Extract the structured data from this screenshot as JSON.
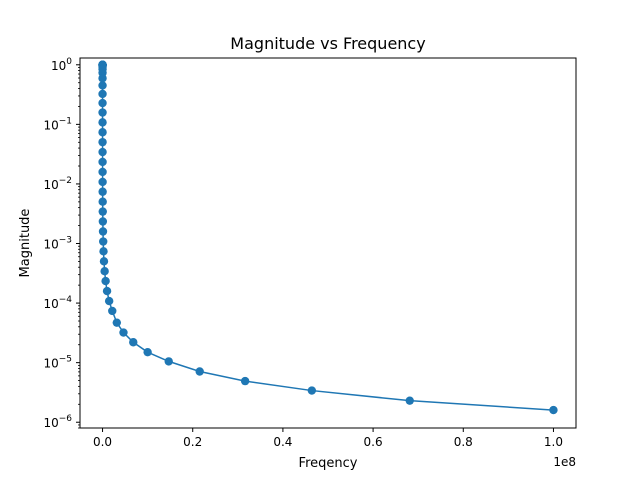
{
  "chart_data": {
    "type": "line",
    "title": "Magnitude vs Frequency",
    "xlabel": "Freqency",
    "ylabel": "Magnitude",
    "x_offset_label": "1e8",
    "yscale": "log",
    "grid": false,
    "legend": "none",
    "xlim": [
      -5000000,
      105000000
    ],
    "ylim": [
      8e-07,
      1.3
    ],
    "x_ticks": [
      {
        "value": 0,
        "label": "0.0"
      },
      {
        "value": 20000000,
        "label": "0.2"
      },
      {
        "value": 40000000,
        "label": "0.4"
      },
      {
        "value": 60000000,
        "label": "0.6"
      },
      {
        "value": 80000000,
        "label": "0.8"
      },
      {
        "value": 100000000,
        "label": "1.0"
      }
    ],
    "y_ticks": [
      {
        "value": 1e-06,
        "base": "10",
        "exp": "−6"
      },
      {
        "value": 1e-05,
        "base": "10",
        "exp": "−5"
      },
      {
        "value": 0.0001,
        "base": "10",
        "exp": "−4"
      },
      {
        "value": 0.001,
        "base": "10",
        "exp": "−3"
      },
      {
        "value": 0.01,
        "base": "10",
        "exp": "−2"
      },
      {
        "value": 0.1,
        "base": "10",
        "exp": "−1"
      },
      {
        "value": 1,
        "base": "10",
        "exp": "0"
      }
    ],
    "series": [
      {
        "color": "#1f77b4",
        "marker": "circle",
        "x": [
          1,
          1.468,
          2.154,
          3.162,
          4.642,
          6.813,
          10,
          14.68,
          21.54,
          31.62,
          46.42,
          68.13,
          100,
          146.8,
          215.4,
          316.2,
          464.2,
          681.3,
          1000,
          1468,
          2154,
          3162,
          4642,
          6813,
          10000,
          14678,
          21544,
          31623,
          46416,
          68129,
          100000,
          146780,
          215440,
          316230,
          464160,
          681290,
          1000000,
          1467800,
          2154400,
          3162300,
          4641600,
          6812900,
          10000000,
          14678000,
          21544000,
          31623000,
          46416000,
          68129000,
          100000000
        ],
        "y": [
          1.0,
          1.0,
          1.0,
          1.0,
          1.0,
          0.999,
          0.998,
          0.996,
          0.991,
          0.981,
          0.96,
          0.919,
          0.847,
          0.735,
          0.594,
          0.45,
          0.324,
          0.228,
          0.158,
          0.108,
          0.0737,
          0.0503,
          0.0343,
          0.0234,
          0.0159,
          0.0108,
          0.00739,
          0.00503,
          0.00343,
          0.00234,
          0.00159,
          0.00108,
          0.000739,
          0.000503,
          0.000343,
          0.000234,
          0.000159,
          0.000108,
          7.39e-05,
          4.69e-05,
          3.2e-05,
          2.2e-05,
          1.5e-05,
          1.05e-05,
          7.1e-06,
          4.9e-06,
          3.4e-06,
          2.3e-06,
          1.6e-06
        ]
      }
    ]
  }
}
